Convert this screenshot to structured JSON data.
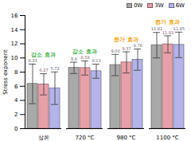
{
  "chart_data": {
    "type": "bar",
    "y_label": "Stress exponent",
    "categories": [
      "상온",
      "720 °C",
      "980 °C",
      "1100 °C"
    ],
    "series": [
      {
        "name": "0W",
        "color": "#a9a9a9",
        "values": [
          6.33,
          8.6,
          9.0,
          11.81
        ],
        "value_labels": [
          "6.33",
          "8.6",
          "9.00",
          "11.81"
        ],
        "errors": [
          2.8,
          0.8,
          1.5,
          1.8
        ]
      },
      {
        "name": "3W",
        "color": "#e8a0a8",
        "values": [
          6.27,
          8.58,
          9.37,
          11.93
        ],
        "value_labels": [
          "6.27",
          "8.58",
          "9.37",
          "11.93"
        ],
        "errors": [
          1.5,
          1.0,
          1.5,
          1.2
        ]
      },
      {
        "name": "6W",
        "color": "#b4b4ea",
        "values": [
          5.72,
          8.13,
          9.76,
          11.85
        ],
        "value_labels": [
          "5.72",
          "8.13",
          "9.76",
          "11.85"
        ],
        "errors": [
          2.3,
          1.0,
          1.5,
          1.8
        ]
      }
    ],
    "annotations": [
      {
        "text": "감소 효과",
        "category": "상온",
        "color": "#3cb043"
      },
      {
        "text": "감소 효과",
        "category": "720 °C",
        "color": "#3cb043"
      },
      {
        "text": "증가 효과",
        "category": "980 °C",
        "color": "#f0a000"
      },
      {
        "text": "증가 효과",
        "category": "1100 °C",
        "color": "#f0a000"
      }
    ],
    "ylim": [
      0,
      16
    ],
    "yticks": [
      0,
      2,
      4,
      6,
      8,
      10,
      12,
      14,
      16
    ],
    "grid": false,
    "legend": "top-right",
    "data_labels": true
  }
}
